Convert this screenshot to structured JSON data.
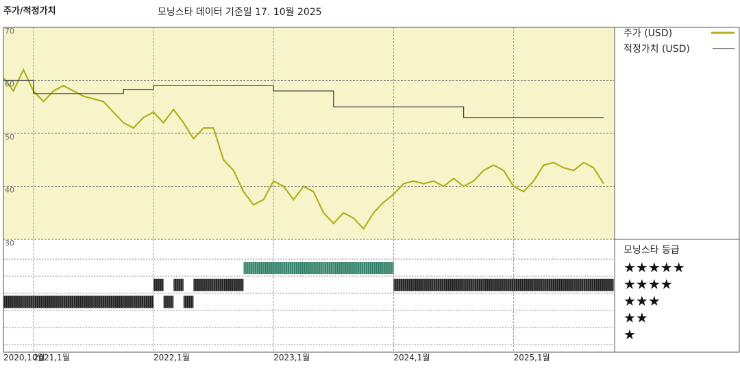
{
  "chart_data": {
    "type": "line",
    "title": "주가/적정가치",
    "subtitle": "모닝스타 데이터 기준일 17. 10월 2025",
    "x": [
      "2020-10",
      "2020-11",
      "2020-12",
      "2021-01",
      "2021-02",
      "2021-03",
      "2021-04",
      "2021-05",
      "2021-06",
      "2021-07",
      "2021-08",
      "2021-09",
      "2021-10",
      "2021-11",
      "2021-12",
      "2022-01",
      "2022-02",
      "2022-03",
      "2022-04",
      "2022-05",
      "2022-06",
      "2022-07",
      "2022-08",
      "2022-09",
      "2022-10",
      "2022-11",
      "2022-12",
      "2023-01",
      "2023-02",
      "2023-03",
      "2023-04",
      "2023-05",
      "2023-06",
      "2023-07",
      "2023-08",
      "2023-09",
      "2023-10",
      "2023-11",
      "2023-12",
      "2024-01",
      "2024-02",
      "2024-03",
      "2024-04",
      "2024-05",
      "2024-06",
      "2024-07",
      "2024-08",
      "2024-09",
      "2024-10",
      "2024-11",
      "2024-12",
      "2025-01",
      "2025-02",
      "2025-03",
      "2025-04",
      "2025-05",
      "2025-06",
      "2025-07",
      "2025-08",
      "2025-09",
      "2025-10"
    ],
    "series": [
      {
        "name": "주가 (USD)",
        "color": "#aeb01e",
        "values": [
          60.5,
          58,
          62,
          58,
          56,
          58,
          59,
          58,
          57,
          56.5,
          56,
          54,
          52,
          51,
          53,
          54,
          52,
          54.5,
          52,
          49,
          51,
          51,
          45,
          43,
          39,
          36.5,
          37.5,
          41,
          40,
          37.5,
          40,
          39,
          35,
          33,
          35,
          34,
          32,
          35,
          37,
          38.5,
          40.5,
          41,
          40.5,
          41,
          40,
          41.5,
          40,
          41,
          43,
          44,
          43,
          40,
          39,
          41,
          44,
          44.5,
          43.5,
          43,
          44.5,
          43.5,
          40.5
        ]
      },
      {
        "name": "적정가치 (USD)",
        "color": "#444444",
        "values": [
          60,
          60,
          60,
          57.5,
          57.5,
          57.5,
          57.5,
          57.5,
          57.5,
          57.5,
          57.5,
          57.5,
          58.3,
          58.3,
          58.3,
          59,
          59,
          59,
          59,
          59,
          59,
          59,
          59,
          59,
          59,
          59,
          59,
          58,
          58,
          58,
          58,
          58,
          58,
          55,
          55,
          55,
          55,
          55,
          55,
          55,
          55,
          55,
          55,
          55,
          55,
          55,
          53,
          53,
          53,
          53,
          53,
          53,
          53,
          53,
          53,
          53,
          53,
          53,
          53,
          53,
          53
        ]
      }
    ],
    "ylim": [
      30,
      70
    ],
    "yticks": [
      30,
      40,
      50,
      60,
      70
    ],
    "xticks": [
      {
        "value": "2020-10",
        "label": "2020,10월"
      },
      {
        "value": "2021-01",
        "label": "2021,1월"
      },
      {
        "value": "2022-01",
        "label": "2022,1월"
      },
      {
        "value": "2023-01",
        "label": "2023,1월"
      },
      {
        "value": "2024-01",
        "label": "2024,1월"
      },
      {
        "value": "2025-01",
        "label": "2025,1월"
      }
    ],
    "rating_title": "모닝스타 등급",
    "rating_labels": [
      "★★★★★",
      "★★★★",
      "★★★",
      "★★",
      "★"
    ],
    "ratings": [
      3,
      3,
      3,
      3,
      3,
      3,
      3,
      3,
      3,
      3,
      3,
      3,
      3,
      3,
      3,
      4,
      3,
      4,
      3,
      4,
      4,
      4,
      4,
      4,
      5,
      5,
      5,
      5,
      5,
      5,
      5,
      5,
      5,
      5,
      5,
      5,
      5,
      5,
      5,
      4,
      4,
      4,
      4,
      4,
      4,
      4,
      4,
      4,
      4,
      4,
      4,
      4,
      4,
      4,
      4,
      4,
      4,
      4,
      4,
      4,
      4
    ],
    "rating_colors": {
      "5": "#3f8f78",
      "other": "#333333"
    }
  }
}
